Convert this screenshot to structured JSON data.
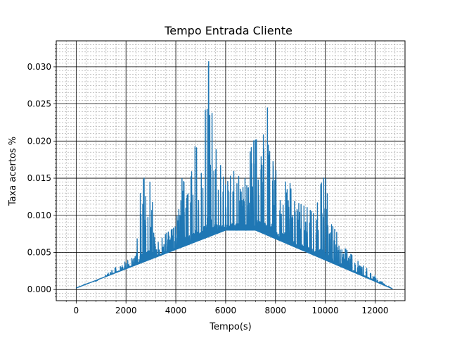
{
  "chart_data": {
    "type": "line",
    "title": "Tempo Entrada Cliente",
    "xlabel": "Tempo(s)",
    "ylabel": "Taxa acertos %",
    "xlim": [
      -800,
      13200
    ],
    "ylim": [
      -0.0015,
      0.0335
    ],
    "xticks": [
      0,
      2000,
      4000,
      6000,
      8000,
      10000,
      12000
    ],
    "xtick_labels": [
      "0",
      "2000",
      "4000",
      "6000",
      "8000",
      "10000",
      "12000"
    ],
    "yticks": [
      0.0,
      0.005,
      0.01,
      0.015,
      0.02,
      0.025,
      0.03
    ],
    "ytick_labels": [
      "0.000",
      "0.005",
      "0.010",
      "0.015",
      "0.020",
      "0.025",
      "0.030"
    ],
    "grid": {
      "major": true,
      "minor": true
    },
    "line_color": "#1f77b4",
    "series": [
      {
        "baseline": [
          [
            0,
            0.0002
          ],
          [
            6000,
            0.008
          ],
          [
            7200,
            0.008
          ],
          [
            12700,
            0.0001
          ]
        ],
        "upper_envelope": [
          [
            0,
            0.0002
          ],
          [
            400,
            0.0008
          ],
          [
            800,
            0.0011
          ],
          [
            1200,
            0.002
          ],
          [
            1600,
            0.003
          ],
          [
            2000,
            0.0038
          ],
          [
            2400,
            0.0045
          ],
          [
            2600,
            0.0142
          ],
          [
            2800,
            0.0155
          ],
          [
            3000,
            0.0142
          ],
          [
            3200,
            0.006
          ],
          [
            3600,
            0.0075
          ],
          [
            4000,
            0.0085
          ],
          [
            4200,
            0.014
          ],
          [
            4400,
            0.018
          ],
          [
            4600,
            0.015
          ],
          [
            4800,
            0.02
          ],
          [
            5000,
            0.0145
          ],
          [
            5200,
            0.025
          ],
          [
            5350,
            0.0322
          ],
          [
            5500,
            0.02
          ],
          [
            5700,
            0.018
          ],
          [
            6000,
            0.014
          ],
          [
            6300,
            0.016
          ],
          [
            6600,
            0.015
          ],
          [
            6900,
            0.0175
          ],
          [
            7100,
            0.02
          ],
          [
            7500,
            0.0205
          ],
          [
            7700,
            0.025
          ],
          [
            7900,
            0.0205
          ],
          [
            8100,
            0.013
          ],
          [
            8400,
            0.018
          ],
          [
            8700,
            0.012
          ],
          [
            9000,
            0.0115
          ],
          [
            9300,
            0.011
          ],
          [
            9600,
            0.01
          ],
          [
            9800,
            0.014
          ],
          [
            10000,
            0.0155
          ],
          [
            10200,
            0.009
          ],
          [
            10500,
            0.0075
          ],
          [
            10800,
            0.0055
          ],
          [
            11100,
            0.0045
          ],
          [
            11400,
            0.0035
          ],
          [
            11800,
            0.0025
          ],
          [
            12200,
            0.0012
          ],
          [
            12700,
            0.0001
          ]
        ]
      }
    ]
  }
}
